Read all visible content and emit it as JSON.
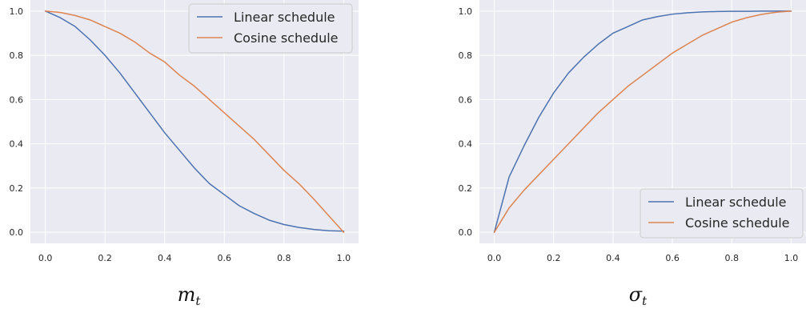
{
  "chart_data": [
    {
      "type": "line",
      "xlabel_symbol": "m",
      "xlabel_subscript": "t",
      "xlim": [
        0,
        1
      ],
      "ylim": [
        0,
        1
      ],
      "xticks": [
        "0.0",
        "0.2",
        "0.4",
        "0.6",
        "0.8",
        "1.0"
      ],
      "yticks": [
        "0.0",
        "0.2",
        "0.4",
        "0.6",
        "0.8",
        "1.0"
      ],
      "grid": true,
      "legend_position": "top-right",
      "x": [
        0,
        0.05,
        0.1,
        0.15,
        0.2,
        0.25,
        0.3,
        0.35,
        0.4,
        0.45,
        0.5,
        0.55,
        0.6,
        0.65,
        0.7,
        0.75,
        0.8,
        0.85,
        0.9,
        0.95,
        1.0
      ],
      "series": [
        {
          "name": "Linear schedule",
          "color": "#4c72b0",
          "values": [
            1.0,
            0.97,
            0.93,
            0.87,
            0.8,
            0.72,
            0.63,
            0.54,
            0.45,
            0.37,
            0.29,
            0.22,
            0.17,
            0.12,
            0.085,
            0.055,
            0.035,
            0.022,
            0.013,
            0.007,
            0.005
          ]
        },
        {
          "name": "Cosine schedule",
          "color": "#dd8452",
          "values": [
            1.0,
            0.994,
            0.98,
            0.96,
            0.93,
            0.9,
            0.86,
            0.81,
            0.77,
            0.71,
            0.66,
            0.6,
            0.54,
            0.48,
            0.42,
            0.35,
            0.28,
            0.22,
            0.15,
            0.075,
            0.0
          ]
        }
      ]
    },
    {
      "type": "line",
      "xlabel_symbol": "σ",
      "xlabel_subscript": "t",
      "xlim": [
        0,
        1
      ],
      "ylim": [
        0,
        1
      ],
      "xticks": [
        "0.0",
        "0.2",
        "0.4",
        "0.6",
        "0.8",
        "1.0"
      ],
      "yticks": [
        "0.0",
        "0.2",
        "0.4",
        "0.6",
        "0.8",
        "1.0"
      ],
      "grid": true,
      "legend_position": "bottom-right",
      "x": [
        0,
        0.05,
        0.1,
        0.15,
        0.2,
        0.25,
        0.3,
        0.35,
        0.4,
        0.45,
        0.5,
        0.55,
        0.6,
        0.65,
        0.7,
        0.75,
        0.8,
        0.85,
        0.9,
        0.95,
        1.0
      ],
      "series": [
        {
          "name": "Linear schedule",
          "color": "#4c72b0",
          "values": [
            0.0,
            0.25,
            0.39,
            0.52,
            0.63,
            0.72,
            0.79,
            0.85,
            0.9,
            0.93,
            0.96,
            0.975,
            0.986,
            0.992,
            0.996,
            0.998,
            0.999,
            0.999,
            1.0,
            1.0,
            1.0
          ]
        },
        {
          "name": "Cosine schedule",
          "color": "#dd8452",
          "values": [
            0.0,
            0.11,
            0.19,
            0.26,
            0.33,
            0.4,
            0.47,
            0.54,
            0.6,
            0.66,
            0.71,
            0.76,
            0.81,
            0.85,
            0.89,
            0.92,
            0.95,
            0.97,
            0.985,
            0.995,
            1.0
          ]
        }
      ]
    }
  ]
}
